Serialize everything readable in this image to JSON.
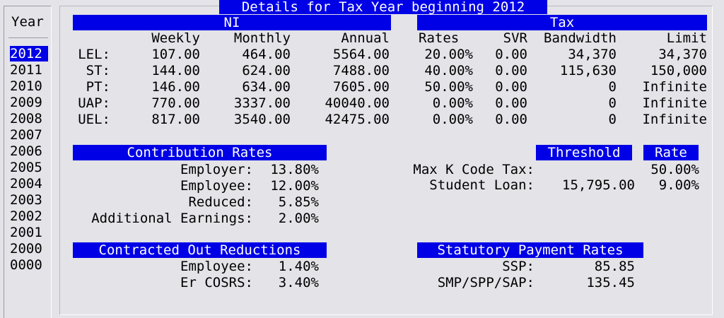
{
  "sidebar": {
    "title": "Year",
    "selected": "2012",
    "years": [
      "2012",
      "2011",
      "2010",
      "2009",
      "2008",
      "2007",
      "2006",
      "2005",
      "2004",
      "2003",
      "2002",
      "2001",
      "2000",
      "0000"
    ]
  },
  "main": {
    "title": "Details for Tax Year beginning 2012",
    "ni": {
      "header": "NI",
      "columns": [
        "Weekly",
        "Monthly",
        "Annual"
      ],
      "rows": [
        {
          "label": "LEL:",
          "weekly": "107.00",
          "monthly": "464.00",
          "annual": "5564.00"
        },
        {
          "label": "ST:",
          "weekly": "144.00",
          "monthly": "624.00",
          "annual": "7488.00"
        },
        {
          "label": "PT:",
          "weekly": "146.00",
          "monthly": "634.00",
          "annual": "7605.00"
        },
        {
          "label": "UAP:",
          "weekly": "770.00",
          "monthly": "3337.00",
          "annual": "40040.00"
        },
        {
          "label": "UEL:",
          "weekly": "817.00",
          "monthly": "3540.00",
          "annual": "42475.00"
        }
      ]
    },
    "tax": {
      "header": "Tax",
      "columns": [
        "Rates",
        "SVR",
        "Bandwidth",
        "Limit"
      ],
      "rows": [
        {
          "rate": "20.00%",
          "svr": "0.00",
          "bandwidth": "34,370",
          "limit": "34,370"
        },
        {
          "rate": "40.00%",
          "svr": "0.00",
          "bandwidth": "115,630",
          "limit": "150,000"
        },
        {
          "rate": "50.00%",
          "svr": "0.00",
          "bandwidth": "0",
          "limit": "Infinite"
        },
        {
          "rate": "0.00%",
          "svr": "0.00",
          "bandwidth": "0",
          "limit": "Infinite"
        },
        {
          "rate": "0.00%",
          "svr": "0.00",
          "bandwidth": "0",
          "limit": "Infinite"
        }
      ]
    },
    "contribution": {
      "header": "Contribution Rates",
      "rows": [
        {
          "label": "Employer:",
          "value": "13.80%"
        },
        {
          "label": "Employee:",
          "value": "12.00%"
        },
        {
          "label": "Reduced:",
          "value": "5.85%"
        },
        {
          "label": "Additional Earnings:",
          "value": "2.00%"
        }
      ]
    },
    "threshold": {
      "threshold_header": "Threshold",
      "rate_header": "Rate",
      "max_k_label": "Max K Code Tax:",
      "max_k_rate": "50.00%",
      "student_loan_label": "Student Loan:",
      "student_loan_threshold": "15,795.00",
      "student_loan_rate": "9.00%"
    },
    "contracted_out": {
      "header": "Contracted Out Reductions",
      "rows": [
        {
          "label": "Employee:",
          "value": "1.40%"
        },
        {
          "label": "Er COSRS:",
          "value": "3.40%"
        }
      ]
    },
    "statutory": {
      "header": "Statutory Payment Rates",
      "rows": [
        {
          "label": "SSP:",
          "value": "85.85"
        },
        {
          "label": "SMP/SPP/SAP:",
          "value": "135.45"
        }
      ]
    }
  }
}
